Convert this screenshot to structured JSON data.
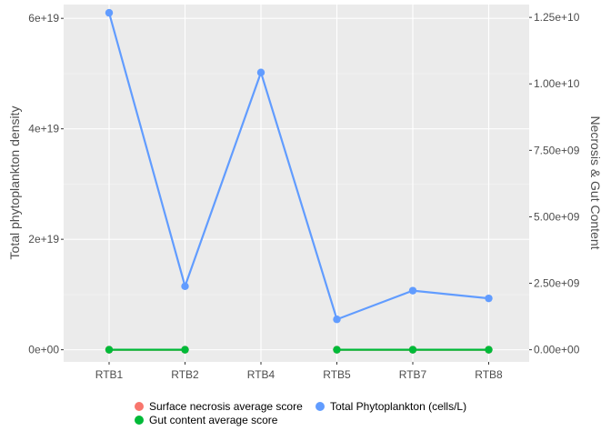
{
  "chart_data": {
    "type": "line",
    "categories": [
      "RTB1",
      "RTB2",
      "RTB4",
      "RTB5",
      "RTB7",
      "RTB8"
    ],
    "y_left": {
      "label": "Total phytoplankton density",
      "ticks": [
        0,
        2e+19,
        4e+19,
        6e+19
      ],
      "tick_labels": [
        "0e+00",
        "2e+19",
        "4e+19",
        "6e+19"
      ],
      "range": [
        -2.2e+18,
        6.25e+19
      ]
    },
    "y_right": {
      "label": "Necrosis & Gut Content",
      "ticks": [
        0,
        2500000000.0,
        5000000000.0,
        7500000000.0,
        10000000000.0,
        12500000000.0
      ],
      "tick_labels": [
        "0.00e+00",
        "2.50e+09",
        "5.00e+09",
        "7.50e+09",
        "1.00e+10",
        "1.25e+10"
      ]
    },
    "grid": true,
    "legend_position": "bottom",
    "series": [
      {
        "name": "Surface necrosis average score",
        "color": "#F8766D",
        "values": [
          0,
          0,
          null,
          0,
          0,
          0
        ]
      },
      {
        "name": "Gut content average score",
        "color": "#00BA38",
        "values": [
          0,
          0,
          null,
          0,
          0,
          0
        ]
      },
      {
        "name": "Total Phytoplankton (cells/L)",
        "color": "#619CFF",
        "values": [
          6.1e+19,
          1.15e+19,
          5.02e+19,
          5.5e+18,
          1.07e+19,
          9.3e+18
        ]
      }
    ]
  }
}
